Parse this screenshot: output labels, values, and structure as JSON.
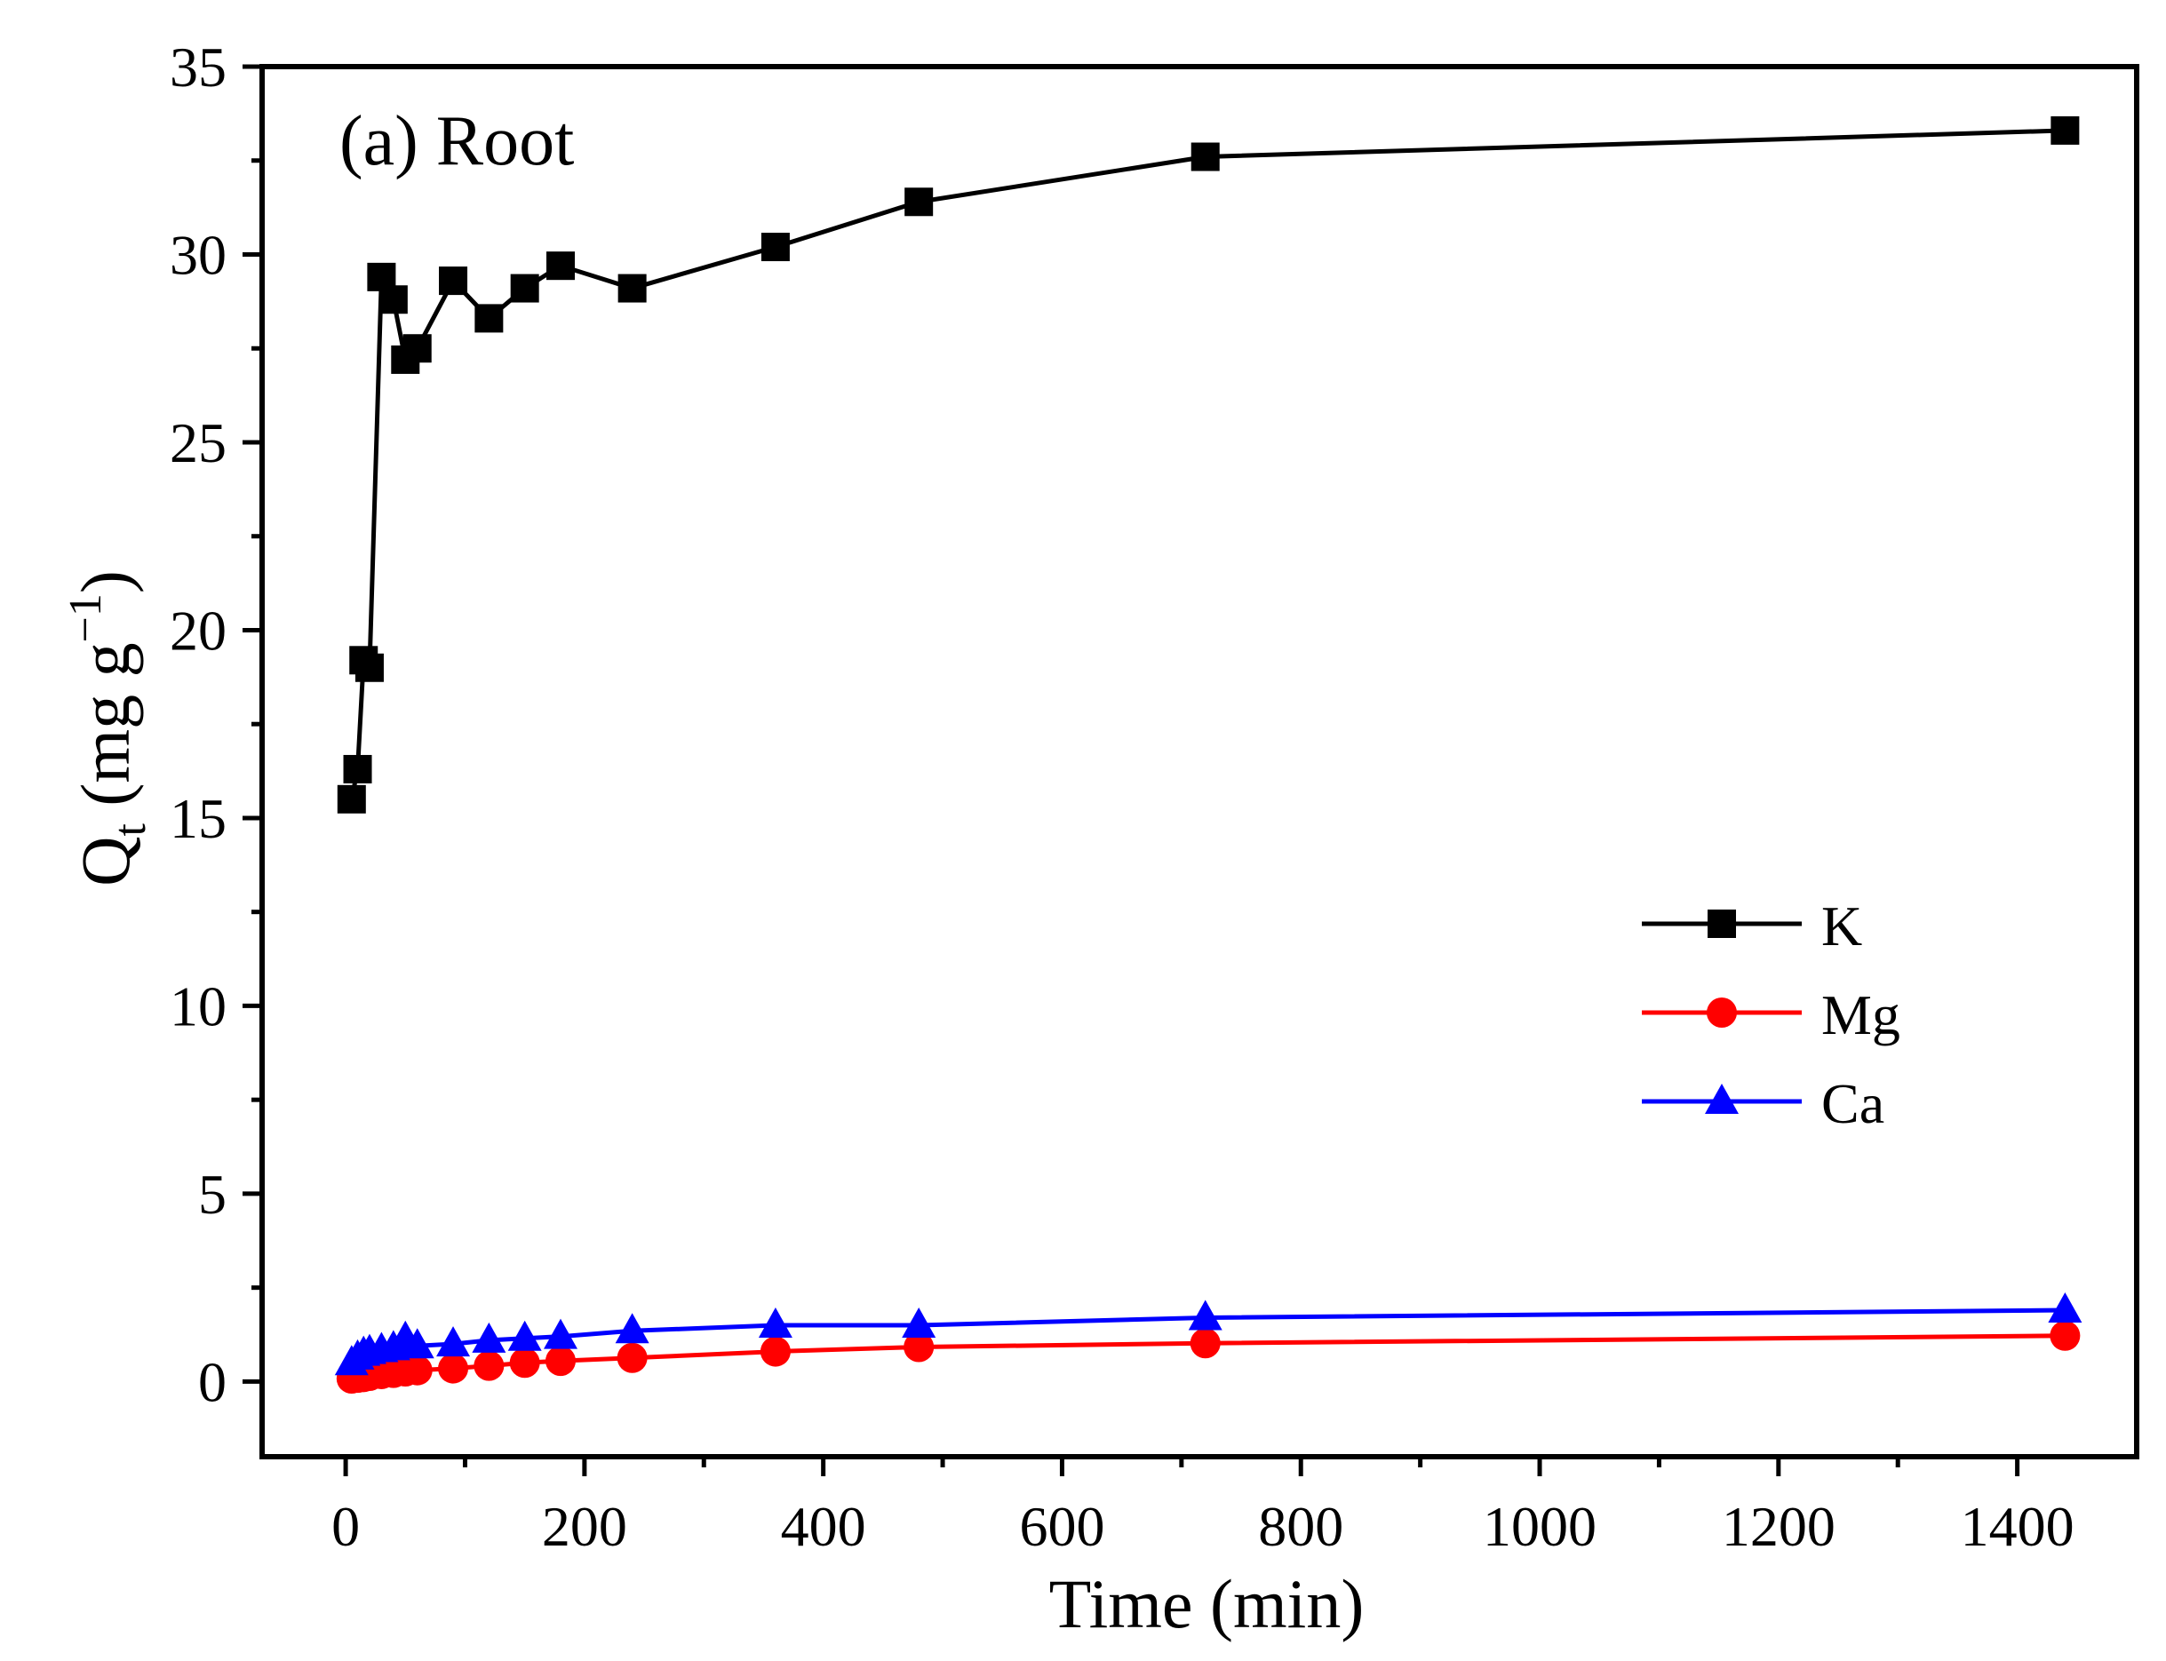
{
  "chart_data": {
    "type": "line",
    "title": "",
    "panel_label": "(a) Root",
    "xlabel": "Time (min)",
    "ylabel_main": "Q",
    "ylabel_sub": "t",
    "ylabel_unit_open": " (mg g",
    "ylabel_sup": "−1",
    "ylabel_unit_close": ")",
    "xlim": [
      -70,
      1500
    ],
    "ylim": [
      -2,
      35
    ],
    "xticks": [
      0,
      200,
      400,
      600,
      800,
      1000,
      1200,
      1400
    ],
    "xtick_labels": [
      "0",
      "200",
      "400",
      "600",
      "800",
      "1000",
      "1200",
      "1400"
    ],
    "xminor": [
      100,
      300,
      500,
      700,
      900,
      1100,
      1300
    ],
    "yticks": [
      0,
      5,
      10,
      15,
      20,
      25,
      30,
      35
    ],
    "ytick_labels": [
      "0",
      "5",
      "10",
      "15",
      "20",
      "25",
      "30",
      "35"
    ],
    "yminor": [
      2.5,
      7.5,
      12.5,
      17.5,
      22.5,
      27.5,
      32.5
    ],
    "grid": false,
    "legend_position": "center-right",
    "x": [
      5,
      10,
      15,
      20,
      30,
      40,
      50,
      60,
      90,
      120,
      150,
      180,
      240,
      360,
      480,
      720,
      1440
    ],
    "series": [
      {
        "name": "K",
        "color": "#000000",
        "marker": "square",
        "values": [
          15.5,
          16.3,
          19.2,
          19.0,
          29.4,
          28.8,
          27.2,
          27.5,
          29.3,
          28.3,
          29.1,
          29.7,
          29.1,
          30.2,
          31.4,
          32.6,
          33.3
        ]
      },
      {
        "name": "Mg",
        "color": "#ff0000",
        "marker": "circle",
        "values": [
          0.08,
          0.1,
          0.12,
          0.15,
          0.2,
          0.23,
          0.27,
          0.3,
          0.35,
          0.42,
          0.5,
          0.55,
          0.63,
          0.8,
          0.92,
          1.02,
          1.22
        ]
      },
      {
        "name": "Ca",
        "color": "#0000ff",
        "marker": "triangle",
        "values": [
          0.5,
          0.65,
          0.75,
          0.8,
          0.85,
          0.9,
          1.15,
          0.95,
          1.0,
          1.1,
          1.15,
          1.2,
          1.35,
          1.5,
          1.5,
          1.7,
          1.9
        ]
      }
    ]
  }
}
